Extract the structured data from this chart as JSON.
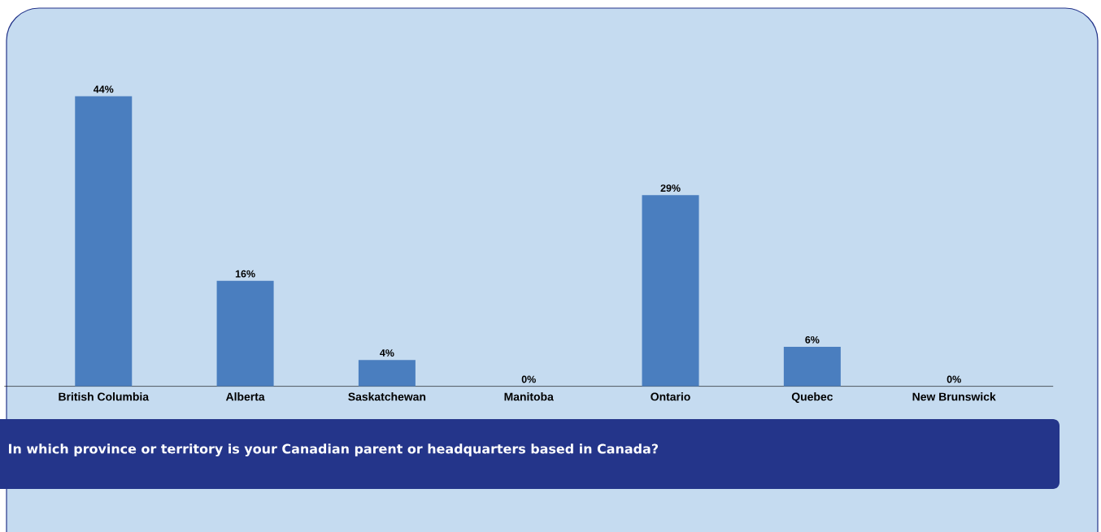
{
  "chart_data": {
    "type": "bar",
    "title": "In which province or territory is your Canadian parent or headquarters based in Canada?",
    "categories": [
      "British Columbia",
      "Alberta",
      "Saskatchewan",
      "Manitoba",
      "Ontario",
      "Quebec",
      "New Brunswick"
    ],
    "values": [
      44,
      16,
      4,
      0,
      29,
      6,
      0
    ],
    "value_labels": [
      "44%",
      "16%",
      "4%",
      "0%",
      "29%",
      "6%",
      "0%"
    ],
    "color": "#4a7ebf"
  }
}
